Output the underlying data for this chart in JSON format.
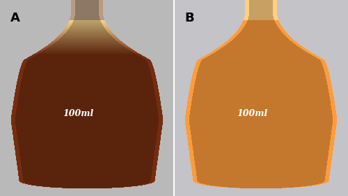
{
  "fig_width": 5.0,
  "fig_height": 2.82,
  "dpi": 100,
  "bg_color": "#c8c8c8",
  "panel_A_bg": [
    185,
    185,
    185
  ],
  "panel_B_bg": [
    195,
    195,
    200
  ],
  "label_A": "A",
  "label_B": "B",
  "label_fontsize": 13,
  "flask_A_liquid": [
    90,
    35,
    12
  ],
  "flask_A_foam": [
    190,
    165,
    110
  ],
  "flask_B_liquid": [
    195,
    120,
    45
  ],
  "flask_glass_edge": [
    160,
    155,
    150
  ],
  "flask_neck_glass_A": [
    140,
    120,
    100
  ],
  "flask_neck_glass_B": [
    200,
    160,
    100
  ],
  "bg_wall_A": [
    200,
    200,
    200
  ],
  "bg_wall_B": [
    200,
    200,
    205
  ],
  "label_100ml_A": "100ml",
  "label_100ml_B": "100ml",
  "white_border_color": "#e0e0e0",
  "panel_divider_color": "#ffffff"
}
